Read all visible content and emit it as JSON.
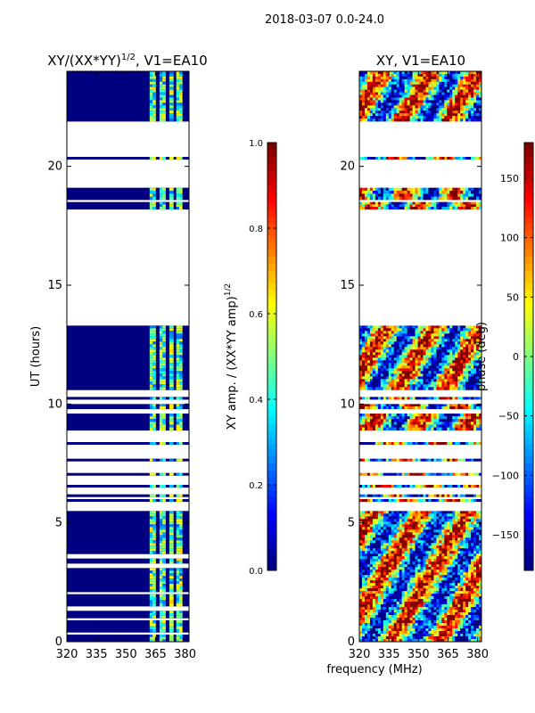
{
  "figure": {
    "suptitle": "2018-03-07 0.0-24.0",
    "shared_xlabel": "frequency (MHz)"
  },
  "chart_data": [
    {
      "type": "heatmap",
      "title_prefix": "XY/(XX*YY)",
      "title_exponent": "1/2",
      "title_suffix": ", V1=EA10",
      "ylabel": "UT (hours)",
      "xlabel": "frequency (MHz)",
      "xlim": [
        320,
        382
      ],
      "ylim": [
        0,
        24
      ],
      "xticks": [
        320,
        335,
        350,
        365,
        380
      ],
      "yticks": [
        0,
        5,
        10,
        15,
        20
      ],
      "colorbar": {
        "label_prefix": "XY amp. / (XX*YY amp)",
        "label_exponent": "1/2",
        "range": [
          0.0,
          1.0
        ],
        "ticks": [
          "0.0",
          "0.2",
          "0.4",
          "0.6",
          "0.8",
          "1.0"
        ],
        "tick_values": [
          0.0,
          0.2,
          0.4,
          0.6,
          0.8,
          1.0
        ],
        "colormap": "jet"
      },
      "data_bands_hours": [
        [
          0.0,
          0.3
        ],
        [
          0.4,
          0.9
        ],
        [
          1.0,
          1.3
        ],
        [
          1.5,
          2.0
        ],
        [
          2.1,
          3.1
        ],
        [
          3.3,
          3.5
        ],
        [
          3.7,
          5.5
        ],
        [
          5.9,
          6.0
        ],
        [
          6.1,
          6.2
        ],
        [
          6.5,
          6.6
        ],
        [
          7.0,
          7.1
        ],
        [
          7.6,
          7.7
        ],
        [
          8.3,
          8.4
        ],
        [
          8.9,
          9.6
        ],
        [
          9.8,
          10.0
        ],
        [
          10.2,
          10.3
        ],
        [
          10.6,
          13.3
        ],
        [
          18.2,
          18.5
        ],
        [
          18.6,
          19.1
        ],
        [
          20.3,
          20.4
        ],
        [
          21.9,
          24.0
        ]
      ],
      "background_value": 0.0,
      "active_channel_mhz": [
        [
          362.0,
          365.0
        ],
        [
          367.0,
          370.0
        ],
        [
          372.0,
          374.0
        ],
        [
          375.5,
          378.5
        ]
      ]
    },
    {
      "type": "heatmap",
      "title": "XY, V1=EA10",
      "xlabel": "frequency (MHz)",
      "xlim": [
        320,
        382
      ],
      "ylim": [
        0,
        24
      ],
      "xticks": [
        320,
        335,
        350,
        365,
        380
      ],
      "yticks": [
        0,
        5,
        10,
        15,
        20
      ],
      "colorbar": {
        "label": "phase (deg)",
        "range": [
          -180,
          180
        ],
        "ticks": [
          "−150",
          "−100",
          "−50",
          "0",
          "50",
          "100",
          "150"
        ],
        "tick_values": [
          -150,
          -100,
          -50,
          0,
          50,
          100,
          150
        ],
        "colormap": "jet"
      },
      "data_bands_hours": [
        [
          0.0,
          5.5
        ],
        [
          5.9,
          6.0
        ],
        [
          6.1,
          6.2
        ],
        [
          6.5,
          6.6
        ],
        [
          7.0,
          7.1
        ],
        [
          7.6,
          7.7
        ],
        [
          8.3,
          8.4
        ],
        [
          8.9,
          9.6
        ],
        [
          9.8,
          10.0
        ],
        [
          10.2,
          10.3
        ],
        [
          10.6,
          13.3
        ],
        [
          18.2,
          18.5
        ],
        [
          18.6,
          19.1
        ],
        [
          20.3,
          20.4
        ],
        [
          21.9,
          24.0
        ]
      ]
    }
  ]
}
